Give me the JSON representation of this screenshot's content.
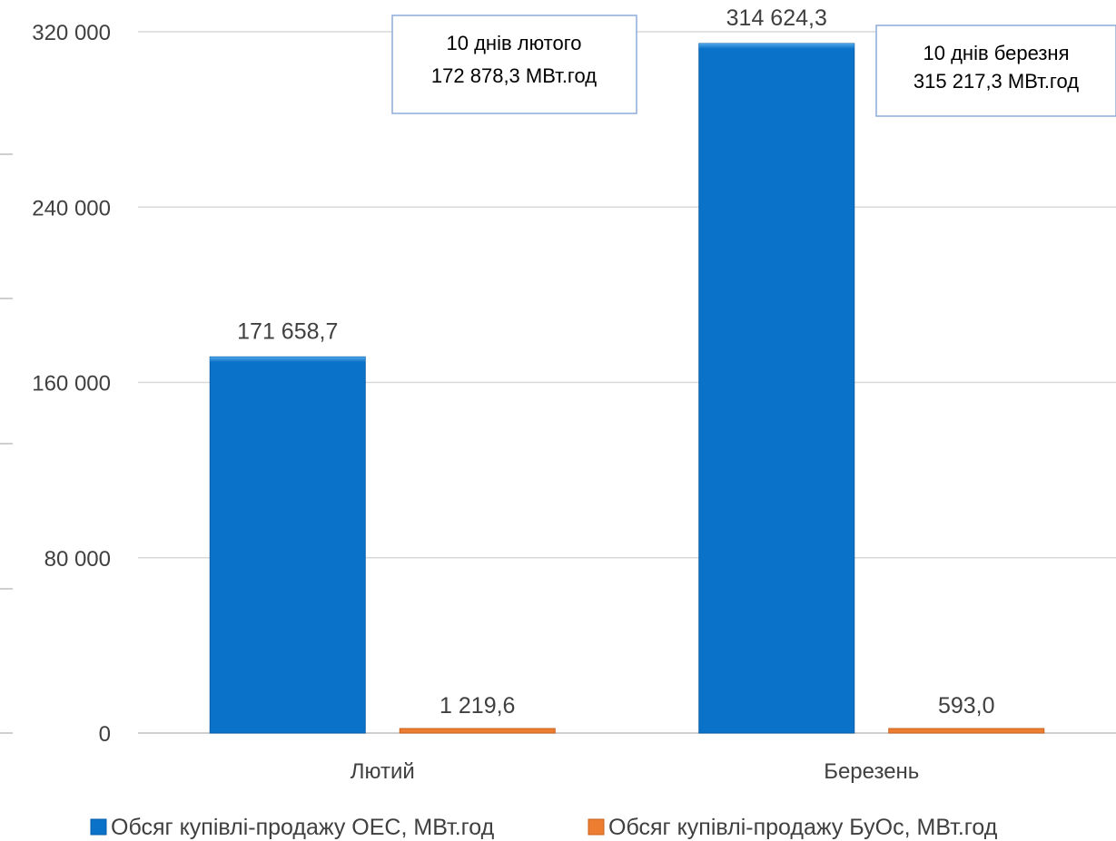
{
  "chart_data": {
    "type": "bar",
    "categories": [
      "Лютий",
      "Березень"
    ],
    "series": [
      {
        "name": "Обсяг купівлі-продажу ОЕС, МВт.год",
        "values": [
          171658.7,
          314624.3
        ],
        "labels": [
          "171 658,7",
          "314 624,3"
        ],
        "color": "#0a72c8"
      },
      {
        "name": "Обсяг купівлі-продажу БуОс, МВт.год",
        "values": [
          1219.6,
          593.0
        ],
        "labels": [
          "1 219,6",
          "593,0"
        ],
        "color": "#ec7d31"
      }
    ],
    "ylim": [
      0,
      320000
    ],
    "yticks": [
      0,
      80000,
      160000,
      240000,
      320000
    ],
    "ytick_labels": [
      "0",
      "80 000",
      "160 000",
      "240 000",
      "320 000"
    ],
    "grid": true,
    "legend": "bottom",
    "annotations": [
      {
        "category": "Лютий",
        "lines": [
          "10 днів лютого",
          "172 878,3 МВт.год"
        ]
      },
      {
        "category": "Березень",
        "lines": [
          "10 днів березня",
          "315 217,3 МВт.год"
        ]
      }
    ]
  },
  "colors": {
    "grid": "#d9d9d9",
    "axis": "#bfbfbf",
    "text": "#404040",
    "note_border": "#8eaadb"
  }
}
